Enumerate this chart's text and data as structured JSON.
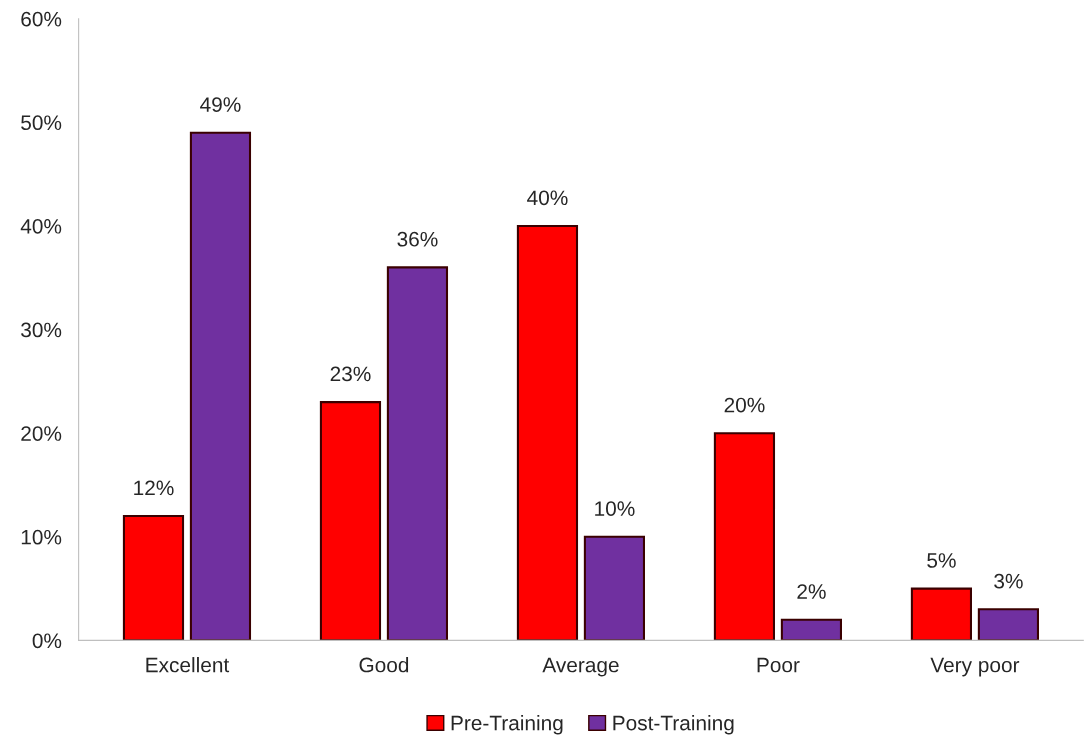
{
  "chart_data": {
    "type": "bar",
    "categories": [
      "Excellent",
      "Good",
      "Average",
      "Poor",
      "Very poor"
    ],
    "series": [
      {
        "name": "Pre-Training",
        "color": "#ff0000",
        "values": [
          12,
          23,
          40,
          20,
          5
        ],
        "value_labels": [
          "12%",
          "23%",
          "40%",
          "20%",
          "5%"
        ]
      },
      {
        "name": "Post-Training",
        "color": "#7030a0",
        "values": [
          49,
          36,
          10,
          2,
          3
        ],
        "value_labels": [
          "49%",
          "36%",
          "10%",
          "2%",
          "3%"
        ]
      }
    ],
    "ylim": [
      0,
      60
    ],
    "yticks": [
      {
        "value": 0,
        "label": "0%"
      },
      {
        "value": 10,
        "label": "10%"
      },
      {
        "value": 20,
        "label": "20%"
      },
      {
        "value": 30,
        "label": "30%"
      },
      {
        "value": 40,
        "label": "40%"
      },
      {
        "value": 50,
        "label": "50%"
      },
      {
        "value": 60,
        "label": "60%"
      }
    ],
    "grid": false,
    "legend": "bottom"
  }
}
